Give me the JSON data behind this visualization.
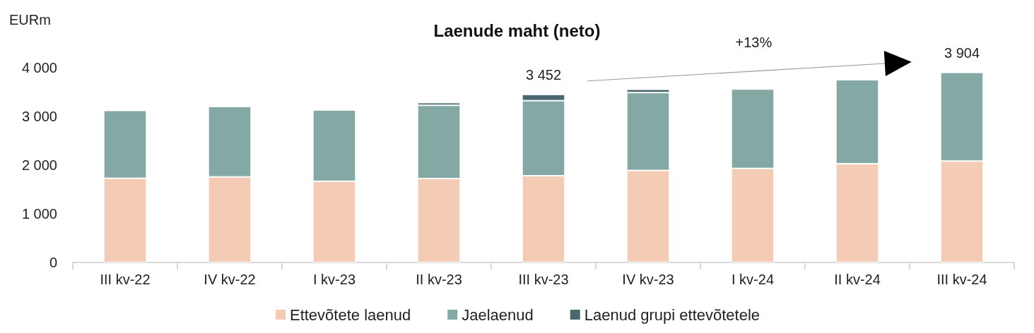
{
  "chart_data": {
    "type": "bar",
    "title": "Laenude maht (neto)",
    "ylabel": "EURm",
    "categories": [
      "III kv-22",
      "IV kv-22",
      "I kv-23",
      "II kv-23",
      "III kv-23",
      "IV kv-23",
      "I kv-24",
      "II kv-24",
      "III kv-24"
    ],
    "stacked": true,
    "series": [
      {
        "name": "Ettevõtete laenud",
        "color": "#f4cbb5",
        "values": [
          1730,
          1758,
          1667,
          1722,
          1781,
          1890,
          1932,
          2027,
          2082
        ]
      },
      {
        "name": "Jaelaenud",
        "color": "#84a8a3",
        "values": [
          1393,
          1447,
          1465,
          1506,
          1543,
          1599,
          1630,
          1726,
          1822
        ]
      },
      {
        "name": "Laenud grupi ettevõtetele",
        "color": "#4a6670",
        "values": [
          null,
          null,
          null,
          55,
          128,
          68,
          null,
          null,
          null
        ]
      }
    ],
    "totals": [
      null,
      null,
      null,
      null,
      "3 452",
      null,
      null,
      null,
      "3 904"
    ],
    "annotations": [
      "+13%"
    ],
    "ylim": [
      0,
      4000
    ],
    "yticks": [
      {
        "value": 0,
        "label": "0"
      },
      {
        "value": 1000,
        "label": "1 000"
      },
      {
        "value": 2000,
        "label": "2 000"
      },
      {
        "value": 3000,
        "label": "3 000"
      },
      {
        "value": 4000,
        "label": "4 000"
      }
    ],
    "grid": false,
    "legend": "bottom"
  }
}
